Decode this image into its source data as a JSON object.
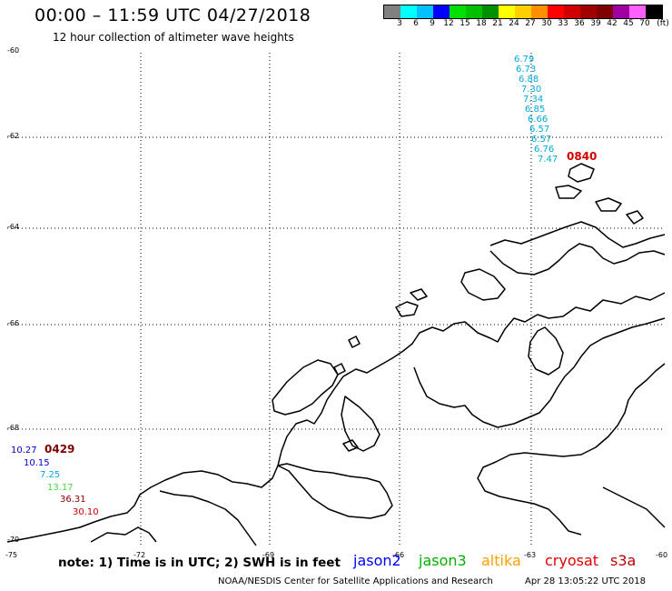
{
  "header": {
    "title": "00:00 – 11:59 UTC 04/27/2018",
    "subtitle": "12 hour collection of altimeter wave heights"
  },
  "colorbar": {
    "colors": [
      "#808080",
      "#00ffff",
      "#00c0ff",
      "#0000ff",
      "#00e000",
      "#00c000",
      "#009000",
      "#ffff00",
      "#ffd000",
      "#ff9000",
      "#ff0000",
      "#d00000",
      "#a00000",
      "#800000",
      "#a000a0",
      "#ff60ff",
      "#000000"
    ],
    "labels": [
      "3",
      "6",
      "9",
      "12",
      "15",
      "18",
      "21",
      "24",
      "27",
      "30",
      "33",
      "36",
      "39",
      "42",
      "45",
      "70",
      "(ft)"
    ]
  },
  "axes": {
    "lat_labels": [
      "-60",
      "-62",
      "-64",
      "-66",
      "-68",
      "-70"
    ],
    "lon_labels": [
      "-75",
      "-72",
      "-69",
      "-66",
      "-63",
      "-60"
    ]
  },
  "tracks": {
    "east": {
      "time": "0840",
      "color": "#00aadd",
      "values": [
        "6.79",
        "6.73",
        "6.88",
        "7.30",
        "7.34",
        "6.85",
        "6.66",
        "6.57",
        "6.57",
        "6.76",
        "7.47"
      ]
    },
    "west": {
      "time": "0429",
      "values": [
        {
          "v": "10.27",
          "color": "#0000cc"
        },
        {
          "v": "10.15",
          "color": "#0000cc"
        },
        {
          "v": "7.25",
          "color": "#00aadd"
        },
        {
          "v": "13.17",
          "color": "#44dd44"
        },
        {
          "v": "36.31",
          "color": "#880000"
        },
        {
          "v": "30.10",
          "color": "#cc0000"
        }
      ]
    }
  },
  "footer": {
    "note": "note: 1) Time is in UTC; 2) SWH is in feet",
    "satellites": [
      {
        "name": "jason2",
        "color": "#0000ff"
      },
      {
        "name": "jason3",
        "color": "#00b000"
      },
      {
        "name": "altika",
        "color": "#ffa000"
      },
      {
        "name": "cryosat",
        "color": "#e00000"
      },
      {
        "name": "s3a",
        "color": "#c00000"
      }
    ],
    "credit": "NOAA/NESDIS Center for Satellite Applications and Research",
    "timestamp": "Apr 28 13:05:22 UTC 2018"
  }
}
